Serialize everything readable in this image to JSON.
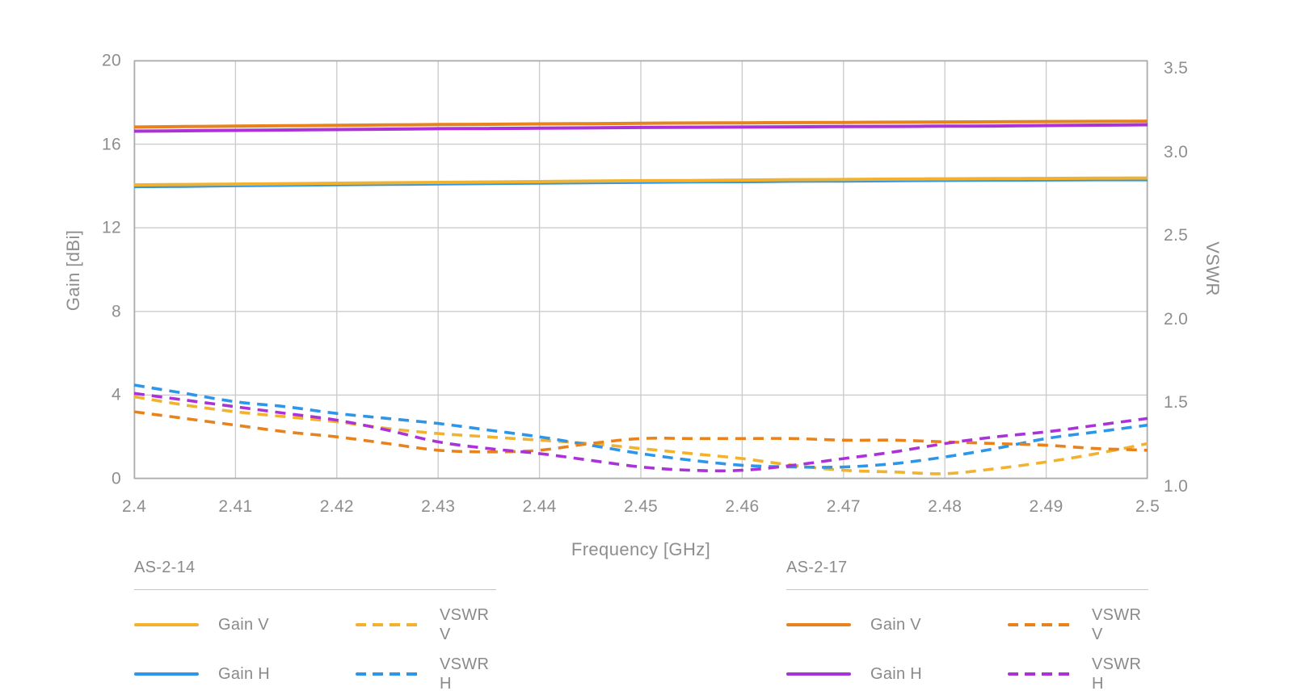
{
  "chart_data": {
    "type": "line",
    "title": "",
    "xlabel": "Frequency [GHz]",
    "ylabel_left": "Gain [dBi]",
    "ylabel_right": "VSWR",
    "x_range": [
      2.4,
      2.5
    ],
    "gain_range": [
      0,
      20
    ],
    "vswr_range": [
      1.0,
      3.5
    ],
    "grid": true,
    "x_ticks": [
      {
        "label": "2.4",
        "value": 2.4
      },
      {
        "label": "2.41",
        "value": 2.41
      },
      {
        "label": "2.42",
        "value": 2.42
      },
      {
        "label": "2.43",
        "value": 2.43
      },
      {
        "label": "2.44",
        "value": 2.44
      },
      {
        "label": "2.45",
        "value": 2.45
      },
      {
        "label": "2.46",
        "value": 2.46
      },
      {
        "label": "2.47",
        "value": 2.47
      },
      {
        "label": "2.48",
        "value": 2.48
      },
      {
        "label": "2.49",
        "value": 2.49
      },
      {
        "label": "2.5",
        "value": 2.5
      }
    ],
    "gain_ticks": [
      {
        "label": "20",
        "value": 20
      },
      {
        "label": "16",
        "value": 16
      },
      {
        "label": "12",
        "value": 12
      },
      {
        "label": "8",
        "value": 8
      },
      {
        "label": "4",
        "value": 4
      },
      {
        "label": "0",
        "value": 0
      }
    ],
    "vswr_ticks": [
      {
        "label": "3.5",
        "value": 3.5
      },
      {
        "label": "3.0",
        "value": 3.0
      },
      {
        "label": "2.5",
        "value": 2.5
      },
      {
        "label": "2.0",
        "value": 2.0
      },
      {
        "label": "1.5",
        "value": 1.5
      },
      {
        "label": "1.0",
        "value": 1.0
      }
    ],
    "x": [
      2.4,
      2.405,
      2.41,
      2.415,
      2.42,
      2.425,
      2.43,
      2.435,
      2.44,
      2.445,
      2.45,
      2.455,
      2.46,
      2.465,
      2.47,
      2.475,
      2.48,
      2.485,
      2.49,
      2.495,
      2.5
    ],
    "series": [
      {
        "id": "as-2-14-gain-h",
        "group": "AS-2-14",
        "name": "Gain H",
        "axis": "gain",
        "style": "solid",
        "color": "#2d96e8",
        "values": [
          13.97,
          13.99,
          14.02,
          14.04,
          14.06,
          14.08,
          14.1,
          14.12,
          14.14,
          14.16,
          14.18,
          14.2,
          14.21,
          14.23,
          14.24,
          14.26,
          14.27,
          14.28,
          14.29,
          14.3,
          14.3
        ]
      },
      {
        "id": "as-2-14-gain-v",
        "group": "AS-2-14",
        "name": "Gain V",
        "axis": "gain",
        "style": "solid",
        "color": "#f2b22d",
        "values": [
          14.05,
          14.07,
          14.09,
          14.11,
          14.13,
          14.15,
          14.17,
          14.19,
          14.21,
          14.23,
          14.25,
          14.26,
          14.28,
          14.3,
          14.31,
          14.33,
          14.34,
          14.35,
          14.36,
          14.37,
          14.38
        ]
      },
      {
        "id": "as-2-17-gain-h",
        "group": "AS-2-17",
        "name": "Gain H",
        "axis": "gain",
        "style": "solid",
        "color": "#ab32d8",
        "values": [
          16.62,
          16.64,
          16.66,
          16.68,
          16.7,
          16.72,
          16.74,
          16.75,
          16.77,
          16.78,
          16.8,
          16.81,
          16.82,
          16.83,
          16.84,
          16.85,
          16.86,
          16.87,
          16.89,
          16.91,
          16.93
        ]
      },
      {
        "id": "as-2-17-gain-v",
        "group": "AS-2-17",
        "name": "Gain V",
        "axis": "gain",
        "style": "solid",
        "color": "#e8821d",
        "values": [
          16.82,
          16.84,
          16.86,
          16.88,
          16.9,
          16.92,
          16.94,
          16.95,
          16.97,
          16.98,
          17.0,
          17.01,
          17.02,
          17.03,
          17.04,
          17.05,
          17.06,
          17.07,
          17.08,
          17.09,
          17.1
        ]
      },
      {
        "id": "as-2-14-vswr-v",
        "group": "AS-2-14",
        "name": "VSWR V",
        "axis": "vswr",
        "style": "dashed",
        "color": "#f2b22d",
        "values": [
          1.49,
          1.44,
          1.4,
          1.37,
          1.34,
          1.3,
          1.27,
          1.25,
          1.23,
          1.21,
          1.18,
          1.15,
          1.12,
          1.08,
          1.05,
          1.04,
          1.03,
          1.06,
          1.1,
          1.15,
          1.21
        ]
      },
      {
        "id": "as-2-14-vswr-h",
        "group": "AS-2-14",
        "name": "VSWR H",
        "axis": "vswr",
        "style": "dashed",
        "color": "#2d96e8",
        "values": [
          1.56,
          1.51,
          1.46,
          1.43,
          1.39,
          1.36,
          1.33,
          1.29,
          1.25,
          1.2,
          1.15,
          1.11,
          1.08,
          1.07,
          1.07,
          1.09,
          1.13,
          1.18,
          1.24,
          1.28,
          1.32
        ]
      },
      {
        "id": "as-2-17-vswr-v",
        "group": "AS-2-17",
        "name": "VSWR V",
        "axis": "vswr",
        "style": "dashed",
        "color": "#e8821d",
        "values": [
          1.4,
          1.36,
          1.32,
          1.28,
          1.25,
          1.21,
          1.17,
          1.16,
          1.17,
          1.21,
          1.24,
          1.24,
          1.24,
          1.24,
          1.23,
          1.23,
          1.22,
          1.21,
          1.2,
          1.18,
          1.17
        ]
      },
      {
        "id": "as-2-17-vswr-h",
        "group": "AS-2-17",
        "name": "VSWR H",
        "axis": "vswr",
        "style": "dashed",
        "color": "#ab32d8",
        "values": [
          1.51,
          1.47,
          1.43,
          1.39,
          1.35,
          1.29,
          1.22,
          1.18,
          1.15,
          1.11,
          1.07,
          1.05,
          1.05,
          1.08,
          1.12,
          1.16,
          1.21,
          1.25,
          1.28,
          1.32,
          1.36
        ]
      }
    ]
  },
  "legend": {
    "groups": [
      {
        "title": "AS-2-14",
        "items": [
          {
            "label": "Gain V",
            "style": "solid",
            "color": "#f2b22d"
          },
          {
            "label": "VSWR V",
            "style": "dashed",
            "color": "#f2b22d"
          },
          {
            "label": "Gain H",
            "style": "solid",
            "color": "#2d96e8"
          },
          {
            "label": "VSWR H",
            "style": "dashed",
            "color": "#2d96e8"
          }
        ]
      },
      {
        "title": "AS-2-17",
        "items": [
          {
            "label": "Gain V",
            "style": "solid",
            "color": "#e8821d"
          },
          {
            "label": "VSWR V",
            "style": "dashed",
            "color": "#e8821d"
          },
          {
            "label": "Gain H",
            "style": "solid",
            "color": "#ab32d8"
          },
          {
            "label": "VSWR H",
            "style": "dashed",
            "color": "#ab32d8"
          }
        ]
      }
    ]
  },
  "colors": {
    "grid": "#cccccc",
    "plot_border": "#adadad",
    "tick_text": "#8e8e8e",
    "legend_text": "#8a8a8a"
  }
}
